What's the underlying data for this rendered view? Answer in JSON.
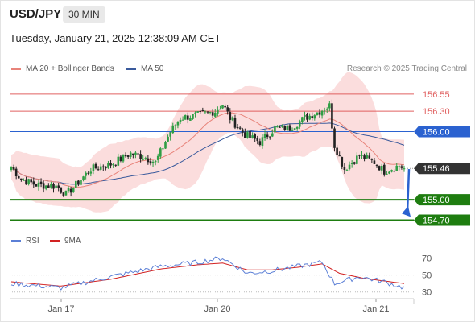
{
  "header": {
    "symbol": "USD/JPY",
    "timeframe": "30 MIN",
    "datetime": "Tuesday, January 21, 2025 12:38:09 AM CET"
  },
  "legend": {
    "ma20_label": "MA 20 + Bollinger Bands",
    "ma20_color": "#e8837a",
    "ma50_label": "MA 50",
    "ma50_color": "#3a5a9c",
    "credit": "Research © 2025 Trading Central"
  },
  "rsi_legend": {
    "rsi_label": "RSI",
    "rsi_color": "#5b7fd6",
    "ma_label": "9MA",
    "ma_color": "#d22222"
  },
  "colors": {
    "bull": "#2f9e44",
    "bear": "#222222",
    "resistance": "#e06060",
    "pivot": "#2b62d0",
    "support": "#1e7d10",
    "arrow": "#2b62d0",
    "bollinger_fill": "#f8c7c7",
    "current_label": "#333333"
  },
  "chart_data": [
    {
      "type": "candlestick",
      "title": "",
      "ylim": [
        154.6,
        156.75
      ],
      "x_ticks": [
        "Jan 17",
        "Jan 20",
        "Jan 21"
      ],
      "current_price": "155.46",
      "levels": [
        {
          "label": "156.55",
          "value": 156.55,
          "kind": "resistance"
        },
        {
          "label": "156.30",
          "value": 156.3,
          "kind": "resistance"
        },
        {
          "label": "156.00",
          "value": 156.0,
          "kind": "pivot"
        },
        {
          "label": "155.00",
          "value": 155.0,
          "kind": "support"
        },
        {
          "label": "154.70",
          "value": 154.7,
          "kind": "support"
        }
      ],
      "arrow": {
        "from": 155.45,
        "to": 154.75
      },
      "close_keypoints": [
        [
          0,
          155.48
        ],
        [
          4,
          155.3
        ],
        [
          10,
          155.22
        ],
        [
          18,
          155.2
        ],
        [
          22,
          155.08
        ],
        [
          26,
          155.22
        ],
        [
          32,
          155.45
        ],
        [
          40,
          155.52
        ],
        [
          44,
          155.6
        ],
        [
          48,
          155.68
        ],
        [
          54,
          155.62
        ],
        [
          58,
          155.55
        ],
        [
          64,
          156.0
        ],
        [
          68,
          156.2
        ],
        [
          76,
          156.25
        ],
        [
          82,
          156.3
        ],
        [
          85,
          156.4
        ],
        [
          88,
          156.2
        ],
        [
          94,
          155.95
        ],
        [
          100,
          155.85
        ],
        [
          106,
          156.05
        ],
        [
          112,
          156.05
        ],
        [
          118,
          156.2
        ],
        [
          124,
          156.3
        ],
        [
          128,
          156.38
        ],
        [
          130,
          155.8
        ],
        [
          134,
          155.45
        ],
        [
          140,
          155.65
        ],
        [
          146,
          155.55
        ],
        [
          150,
          155.42
        ],
        [
          156,
          155.5
        ],
        [
          158,
          155.46
        ]
      ]
    },
    {
      "type": "line",
      "title": "RSI",
      "ylim": [
        25,
        78
      ],
      "y_ticks": [
        70,
        50,
        30
      ],
      "series": [
        {
          "name": "RSI",
          "keypoints": [
            [
              0,
              40
            ],
            [
              20,
              35
            ],
            [
              40,
              48
            ],
            [
              60,
              60
            ],
            [
              75,
              65
            ],
            [
              85,
              70
            ],
            [
              95,
              52
            ],
            [
              105,
              55
            ],
            [
              115,
              60
            ],
            [
              125,
              65
            ],
            [
              130,
              40
            ],
            [
              140,
              48
            ],
            [
              150,
              42
            ],
            [
              158,
              35
            ]
          ]
        },
        {
          "name": "9MA",
          "keypoints": [
            [
              0,
              42
            ],
            [
              20,
              37
            ],
            [
              40,
              45
            ],
            [
              60,
              57
            ],
            [
              75,
              62
            ],
            [
              85,
              64
            ],
            [
              95,
              56
            ],
            [
              105,
              56
            ],
            [
              115,
              59
            ],
            [
              125,
              63
            ],
            [
              132,
              52
            ],
            [
              142,
              46
            ],
            [
              150,
              43
            ],
            [
              158,
              40
            ]
          ]
        }
      ]
    }
  ]
}
